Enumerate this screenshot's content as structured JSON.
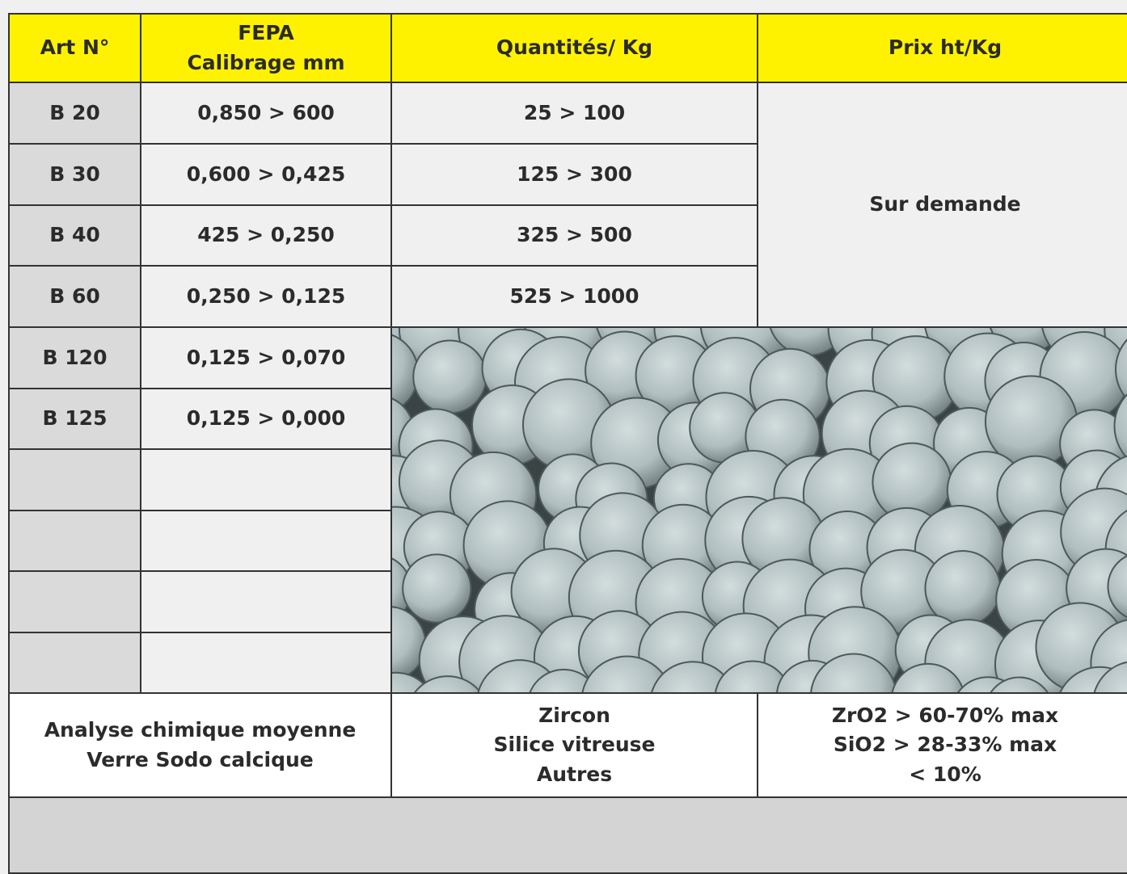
{
  "header": [
    "Art N°",
    [
      "FEPA",
      "Calibrage mm"
    ],
    "Quantités/ Kg",
    "Prix ht/Kg"
  ],
  "rows": [
    [
      "B 20",
      "0,850 > 600",
      "25 > 100"
    ],
    [
      "B 30",
      "0,600 > 0,425",
      "125 > 300"
    ],
    [
      "B 40",
      "425 > 0,250",
      "325 > 500"
    ],
    [
      "B 60",
      "0,250 > 0,125",
      "525 > 1000"
    ],
    [
      "B 120",
      "0,125 > 0,070"
    ],
    [
      "B 125",
      "0,125 > 0,000"
    ]
  ],
  "price": "Sur demande",
  "analysis": {
    "label": [
      "Analyse chimique moyenne",
      "Verre Sodo calcique"
    ],
    "components": [
      "Zircon",
      "Silice vitreuse",
      "Autres"
    ],
    "values": [
      "ZrO2 > 60-70% max",
      "SiO2 > 28-33% max",
      "< 10%"
    ]
  }
}
